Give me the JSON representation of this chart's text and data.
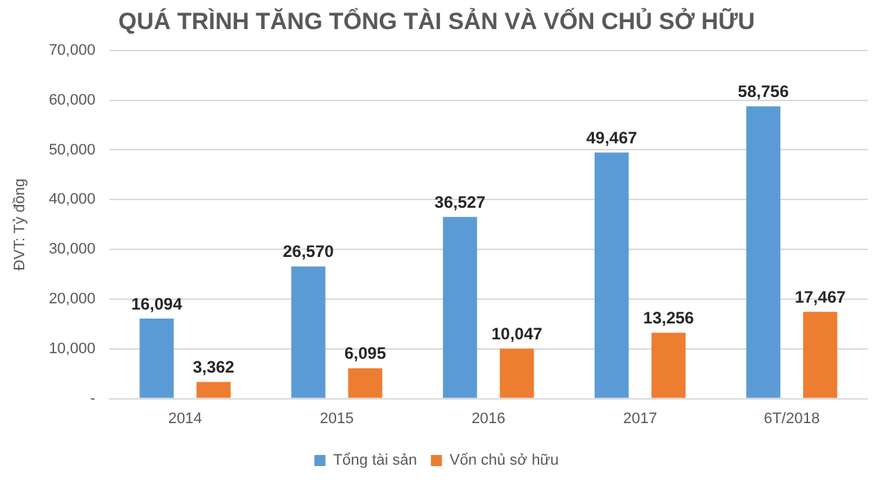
{
  "chart_data": {
    "type": "bar",
    "title": "QUÁ TRÌNH TĂNG TỔNG TÀI SẢN VÀ VỐN CHỦ SỞ HỮU",
    "ylabel": "ĐVT: Tỷ đồng",
    "categories": [
      "2014",
      "2015",
      "2016",
      "2017",
      "6T/2018"
    ],
    "series": [
      {
        "name": "Tổng tài sản",
        "color": "#5b9bd5",
        "values": [
          16094,
          26570,
          36527,
          49467,
          58756
        ],
        "value_labels": [
          "16,094",
          "26,570",
          "36,527",
          "49,467",
          "58,756"
        ]
      },
      {
        "name": "Vốn chủ sở hữu",
        "color": "#ed7d31",
        "values": [
          3362,
          6095,
          10047,
          13256,
          17467
        ],
        "value_labels": [
          "3,362",
          "6,095",
          "10,047",
          "13,256",
          "17,467"
        ]
      }
    ],
    "ylim": [
      0,
      70000
    ],
    "yticks": [
      {
        "value": 0,
        "label": "-"
      },
      {
        "value": 10000,
        "label": "10,000"
      },
      {
        "value": 20000,
        "label": "20,000"
      },
      {
        "value": 30000,
        "label": "30,000"
      },
      {
        "value": 40000,
        "label": "40,000"
      },
      {
        "value": 50000,
        "label": "50,000"
      },
      {
        "value": 60000,
        "label": "60,000"
      },
      {
        "value": 70000,
        "label": "70,000"
      }
    ],
    "grid": "y",
    "legend": "bottom"
  }
}
